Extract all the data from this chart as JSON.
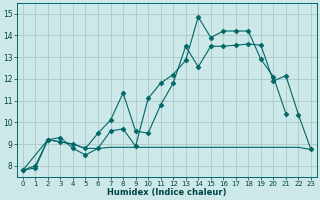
{
  "bg_color": "#cde8e8",
  "grid_color": "#b0cccc",
  "line_color": "#006666",
  "xlabel": "Humidex (Indice chaleur)",
  "xlim": [
    -0.5,
    23.5
  ],
  "ylim": [
    7.5,
    15.5
  ],
  "yticks": [
    8,
    9,
    10,
    11,
    12,
    13,
    14,
    15
  ],
  "xticks": [
    0,
    1,
    2,
    3,
    4,
    5,
    6,
    7,
    8,
    9,
    10,
    11,
    12,
    13,
    14,
    15,
    16,
    17,
    18,
    19,
    20,
    21,
    22,
    23
  ],
  "series1_x": [
    0,
    1,
    2,
    3,
    4,
    5,
    6,
    7,
    8,
    9,
    10,
    11,
    12,
    13,
    14,
    15,
    16,
    17,
    18,
    19,
    20,
    21
  ],
  "series1_y": [
    7.8,
    7.9,
    9.2,
    9.3,
    8.8,
    8.5,
    8.8,
    9.6,
    9.7,
    8.9,
    11.1,
    11.8,
    12.2,
    12.85,
    14.85,
    13.9,
    14.2,
    14.2,
    14.2,
    12.9,
    12.1,
    10.4
  ],
  "series2_x": [
    0,
    1,
    2,
    3,
    4,
    5,
    6,
    7,
    8,
    9,
    10,
    11,
    12,
    13,
    14,
    15,
    16,
    17,
    18,
    19,
    20,
    21,
    22,
    23
  ],
  "series2_y": [
    7.8,
    8.0,
    9.2,
    9.1,
    9.0,
    8.8,
    9.5,
    10.1,
    11.35,
    9.6,
    9.5,
    10.8,
    11.8,
    13.5,
    12.55,
    13.5,
    13.5,
    13.55,
    13.6,
    13.55,
    11.9,
    12.15,
    10.35,
    8.75
  ],
  "series3_x": [
    0,
    2,
    3,
    4,
    5,
    6,
    7,
    8,
    9,
    10,
    11,
    12,
    13,
    14,
    15,
    16,
    17,
    18,
    19,
    20,
    21,
    22,
    23
  ],
  "series3_y": [
    7.8,
    9.2,
    9.1,
    9.0,
    8.8,
    8.8,
    8.85,
    8.85,
    8.85,
    8.85,
    8.85,
    8.85,
    8.85,
    8.85,
    8.85,
    8.85,
    8.85,
    8.85,
    8.85,
    8.85,
    8.85,
    8.85,
    8.75
  ]
}
